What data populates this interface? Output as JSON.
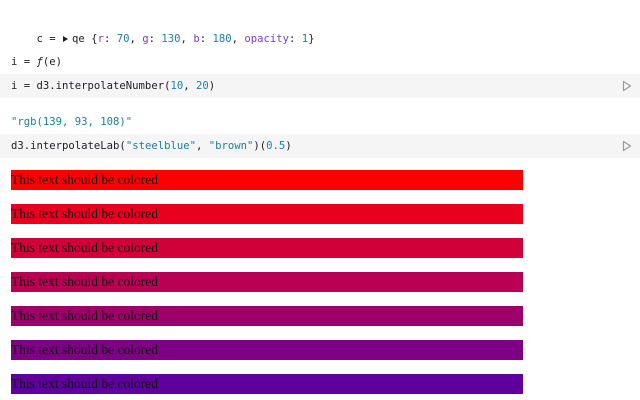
{
  "cells": [
    {
      "tokens": [
        "c = ",
        "qe",
        " {",
        "r",
        ": ",
        "70",
        ", ",
        "g",
        ": ",
        "130",
        ", ",
        "b",
        ": ",
        "180",
        ", ",
        "opacity",
        ": ",
        "1",
        "}"
      ]
    },
    {
      "tokens": [
        "i = ",
        "ƒ",
        "(e)"
      ]
    },
    {
      "tokens": [
        "i = d3.interpolateNumber(",
        "10",
        ", ",
        "20",
        ")"
      ]
    },
    {
      "tokens": [
        "\"rgb(139, 93, 108)\""
      ]
    },
    {
      "tokens": [
        "d3.interpolateLab(",
        "\"steelblue\"",
        ", ",
        "\"brown\"",
        ")(",
        "0.5",
        ")"
      ]
    }
  ],
  "bars": [
    {
      "text": "This text should be colored",
      "color": "#ff0000"
    },
    {
      "text": "This text should be colored",
      "color": "#e9001f"
    },
    {
      "text": "This text should be colored",
      "color": "#d20039"
    },
    {
      "text": "This text should be colored",
      "color": "#b90052"
    },
    {
      "text": "This text should be colored",
      "color": "#9d006b"
    },
    {
      "text": "This text should be colored",
      "color": "#7e0085"
    },
    {
      "text": "This text should be colored",
      "color": "#5f009e"
    }
  ]
}
